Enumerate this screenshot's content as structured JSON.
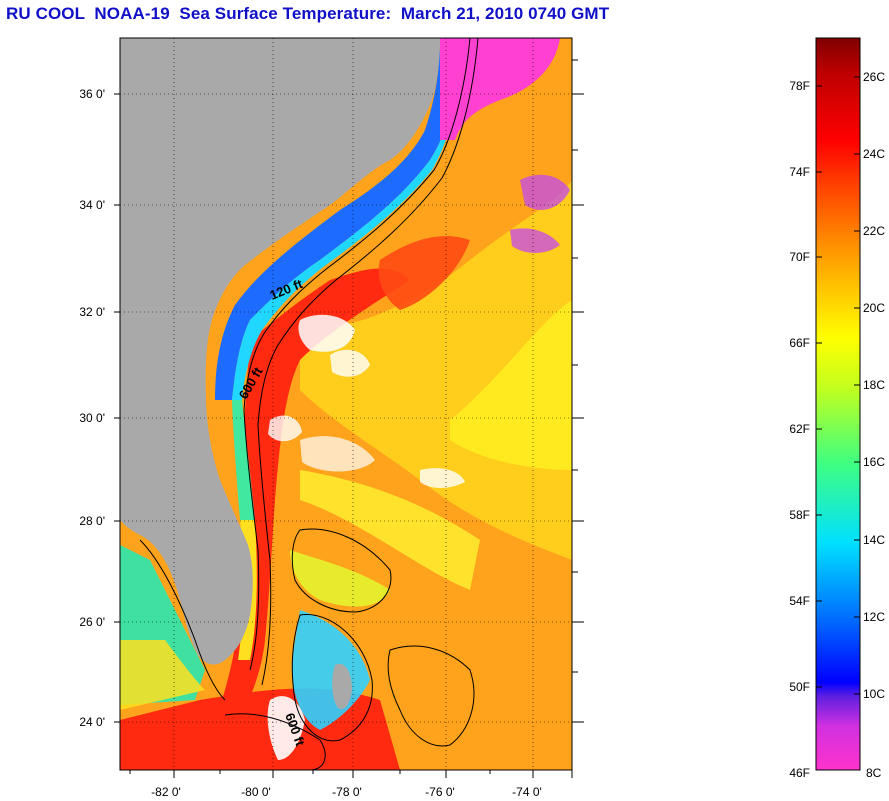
{
  "title": "RU COOL  NOAA-19  Sea Surface Temperature:  March 21, 2010 0740 GMT",
  "map": {
    "lat_labels": [
      "36 0'",
      "34 0'",
      "32 0'",
      "30 0'",
      "28 0'",
      "26 0'",
      "24 0'"
    ],
    "lon_labels": [
      "-82 0'",
      "-80 0'",
      "-78 0'",
      "-76 0'",
      "-74 0'"
    ],
    "contour_labels": [
      "120 ft",
      "600 ft",
      "600 ft"
    ],
    "colors": {
      "land": "#a9a9a9",
      "cloud": "#ffffff",
      "contour": "#000000"
    }
  },
  "colorbar": {
    "fahrenheit": [
      "78F",
      "74F",
      "70F",
      "66F",
      "62F",
      "58F",
      "54F",
      "50F",
      "46F"
    ],
    "celsius": [
      "26C",
      "24C",
      "22C",
      "20C",
      "18C",
      "16C",
      "14C",
      "12C",
      "10C",
      "8C"
    ],
    "range_c": [
      8,
      27
    ],
    "colors": [
      "#ff33cc",
      "#7020e0",
      "#0000ff",
      "#0080ff",
      "#00e0ff",
      "#40ff60",
      "#ffff00",
      "#ff9000",
      "#ff1010",
      "#800000"
    ]
  }
}
